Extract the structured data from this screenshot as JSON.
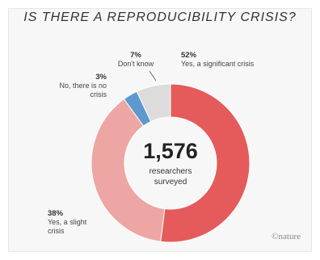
{
  "chart_data": {
    "type": "donut",
    "title": "IS THERE A REPRODUCIBILITY CRISIS?",
    "center_value": "1,576",
    "center_caption_line1": "researchers",
    "center_caption_line2": "surveyed",
    "slices": [
      {
        "percent_label": "52%",
        "label_line1": "Yes, a significant crisis",
        "label_line2": "",
        "value": 52,
        "color": "#e55b5b"
      },
      {
        "percent_label": "38%",
        "label_line1": "Yes, a slight",
        "label_line2": "crisis",
        "value": 38,
        "color": "#eda6a3"
      },
      {
        "percent_label": "3%",
        "label_line1": "No, there is no",
        "label_line2": "crisis",
        "value": 3,
        "color": "#5f98d0"
      },
      {
        "percent_label": "7%",
        "label_line1": "Don't know",
        "label_line2": "",
        "value": 7,
        "color": "#dcdcdc"
      }
    ]
  },
  "branding": {
    "logo": "©nature"
  }
}
